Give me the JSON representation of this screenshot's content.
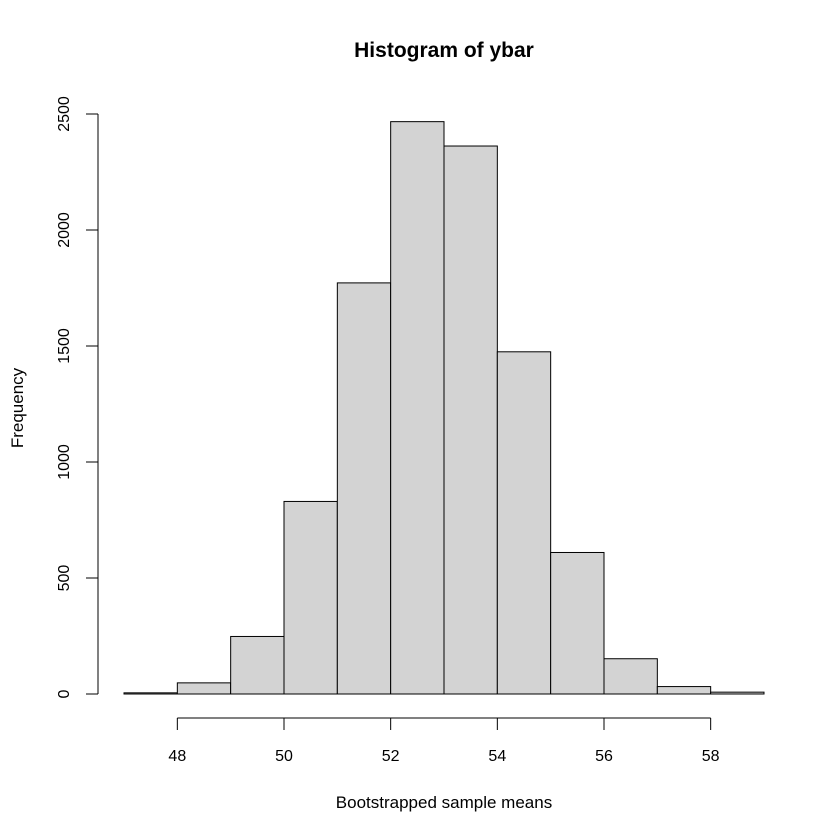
{
  "chart_data": {
    "type": "bar",
    "title": "Histogram of ybar",
    "xlabel": "Bootstrapped sample means",
    "ylabel": "Frequency",
    "bins": [
      {
        "start": 47,
        "end": 48,
        "count": 5
      },
      {
        "start": 48,
        "end": 49,
        "count": 48
      },
      {
        "start": 49,
        "end": 50,
        "count": 248
      },
      {
        "start": 50,
        "end": 51,
        "count": 830
      },
      {
        "start": 51,
        "end": 52,
        "count": 1772
      },
      {
        "start": 52,
        "end": 53,
        "count": 2467
      },
      {
        "start": 53,
        "end": 54,
        "count": 2362
      },
      {
        "start": 54,
        "end": 55,
        "count": 1475
      },
      {
        "start": 55,
        "end": 56,
        "count": 610
      },
      {
        "start": 56,
        "end": 57,
        "count": 152
      },
      {
        "start": 57,
        "end": 58,
        "count": 32
      },
      {
        "start": 58,
        "end": 59,
        "count": 8
      }
    ],
    "xlim": [
      47,
      59
    ],
    "ylim": [
      0,
      2500
    ],
    "x_ticks": [
      48,
      50,
      52,
      54,
      56,
      58
    ],
    "y_ticks": [
      0,
      500,
      1000,
      1500,
      2000,
      2500
    ],
    "bar_fill": "#d3d3d3",
    "bar_stroke": "#000000",
    "grid": false,
    "legend": "none"
  }
}
